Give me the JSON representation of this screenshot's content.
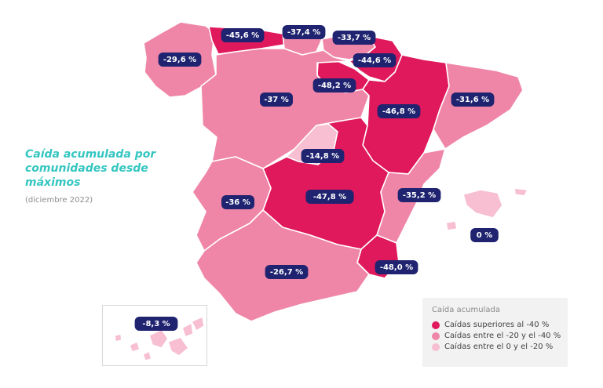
{
  "title": "Caída acumulada por comunidades desde máximos",
  "subtitle": "(diciembre 2022)",
  "colors": {
    "high": "#e0185c",
    "mid": "#ef86a8",
    "low": "#f7bfd1"
  },
  "legend": {
    "title": "Caída acumulada",
    "items": [
      {
        "label": "Caídas superiores al -40 %",
        "category": "high"
      },
      {
        "label": "Caídas entre el -20  y el -40 %",
        "category": "mid"
      },
      {
        "label": "Caídas entre el 0 y el -20 %",
        "category": "low"
      }
    ]
  },
  "regions": [
    {
      "id": "galicia",
      "value": "-29,6 %",
      "category": "mid"
    },
    {
      "id": "asturias",
      "value": "-45,6 %",
      "category": "high"
    },
    {
      "id": "cantabria",
      "value": "-37,4 %",
      "category": "mid"
    },
    {
      "id": "pais-vasco",
      "value": "-33,7 %",
      "category": "mid"
    },
    {
      "id": "navarra",
      "value": "-44,6 %",
      "category": "high"
    },
    {
      "id": "la-rioja",
      "value": "-48,2 %",
      "category": "high"
    },
    {
      "id": "aragon",
      "value": "-46,8 %",
      "category": "high"
    },
    {
      "id": "cataluna",
      "value": "-31,6 %",
      "category": "mid"
    },
    {
      "id": "castilla-leon",
      "value": "-37 %",
      "category": "mid"
    },
    {
      "id": "madrid",
      "value": "-14,8 %",
      "category": "low"
    },
    {
      "id": "castilla-la-mancha",
      "value": "-47,8  %",
      "category": "high"
    },
    {
      "id": "valencia",
      "value": "-35,2 %",
      "category": "mid"
    },
    {
      "id": "baleares",
      "value": "0  %",
      "category": "low"
    },
    {
      "id": "extremadura",
      "value": "-36 %",
      "category": "mid"
    },
    {
      "id": "murcia",
      "value": "-48,0 %",
      "category": "high"
    },
    {
      "id": "andalucia",
      "value": "-26,7 %",
      "category": "mid"
    },
    {
      "id": "canarias",
      "value": "-8,3  %",
      "category": "low"
    }
  ]
}
